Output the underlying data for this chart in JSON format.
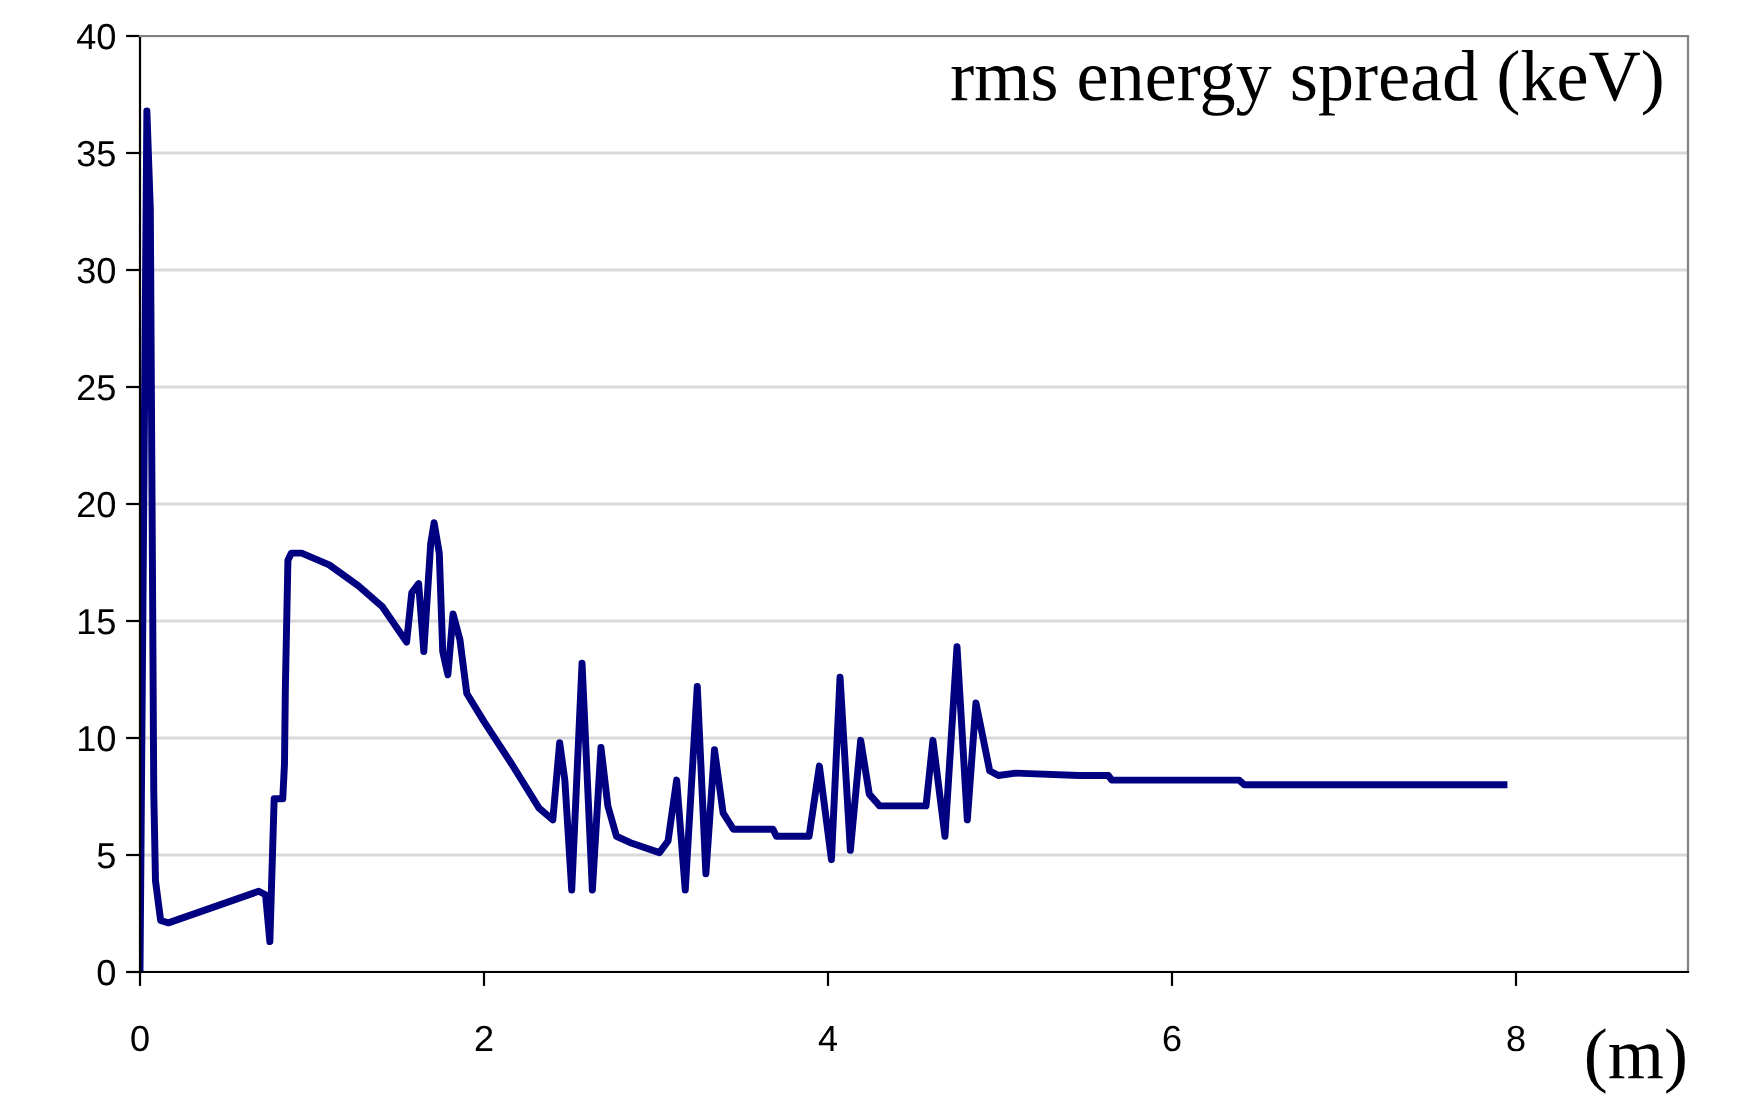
{
  "chart_data": {
    "type": "line",
    "title": "rms energy spread (keV)",
    "xlabel": "(m)",
    "xlim": [
      0,
      9
    ],
    "xticks": [
      0,
      2,
      4,
      6,
      8
    ],
    "ylim": [
      0,
      40
    ],
    "yticks": [
      0,
      5,
      10,
      15,
      20,
      25,
      30,
      35,
      40
    ],
    "grid": "y",
    "legend": false,
    "marker": "none",
    "line_style": "solid",
    "series": [
      {
        "color": "#000080",
        "x": [
          0.0,
          0.04,
          0.06,
          0.08,
          0.09,
          0.12,
          0.165,
          0.69,
          0.73,
          0.755,
          0.78,
          0.83,
          0.84,
          0.845,
          0.86,
          0.88,
          0.94,
          1.1,
          1.27,
          1.41,
          1.55,
          1.58,
          1.62,
          1.65,
          1.69,
          1.71,
          1.74,
          1.76,
          1.79,
          1.82,
          1.86,
          1.9,
          2.0,
          2.16,
          2.32,
          2.4,
          2.44,
          2.47,
          2.51,
          2.57,
          2.63,
          2.68,
          2.72,
          2.77,
          2.86,
          3.02,
          3.07,
          3.12,
          3.17,
          3.24,
          3.29,
          3.34,
          3.39,
          3.45,
          3.68,
          3.7,
          3.89,
          3.95,
          4.02,
          4.07,
          4.13,
          4.19,
          4.24,
          4.3,
          4.57,
          4.61,
          4.68,
          4.75,
          4.81,
          4.86,
          4.94,
          4.99,
          5.09,
          5.46,
          5.63,
          5.65,
          6.39,
          6.42,
          7.93
        ],
        "values": [
          0.0,
          36.8,
          32.6,
          7.7,
          3.9,
          2.2,
          2.1,
          3.45,
          3.3,
          1.3,
          7.4,
          7.4,
          8.9,
          12.1,
          17.6,
          17.9,
          17.9,
          17.4,
          16.5,
          15.6,
          14.1,
          16.2,
          16.6,
          13.7,
          18.3,
          19.2,
          17.9,
          13.7,
          12.7,
          15.3,
          14.2,
          11.9,
          10.7,
          8.9,
          7.0,
          6.5,
          9.8,
          8.2,
          3.5,
          13.2,
          3.5,
          9.6,
          7.1,
          5.8,
          5.5,
          5.1,
          5.6,
          8.2,
          3.5,
          12.2,
          4.2,
          9.5,
          6.8,
          6.1,
          6.1,
          5.8,
          5.8,
          8.8,
          4.8,
          12.6,
          5.2,
          9.9,
          7.6,
          7.1,
          7.1,
          9.9,
          5.8,
          13.9,
          6.5,
          11.5,
          8.6,
          8.4,
          8.5,
          8.4,
          8.4,
          8.2,
          8.2,
          8.0,
          8.0
        ]
      }
    ]
  }
}
